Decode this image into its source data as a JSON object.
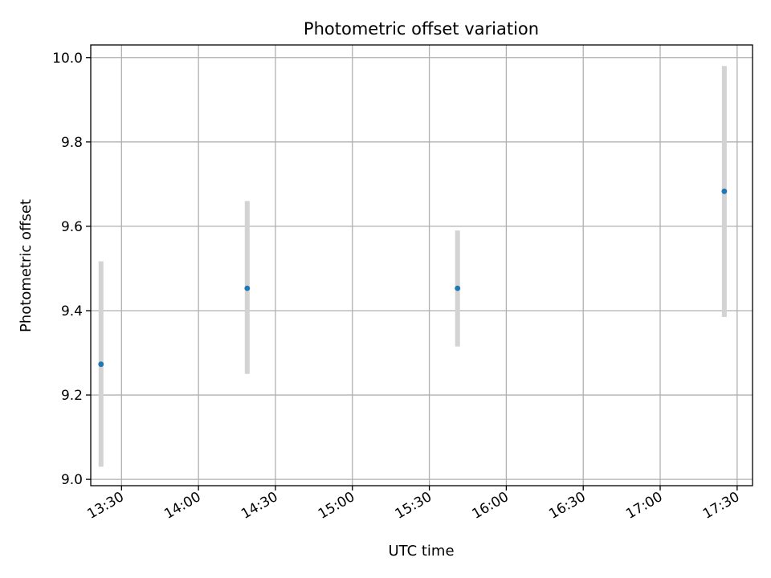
{
  "chart_data": {
    "type": "scatter",
    "title": "Photometric offset variation",
    "xlabel": "UTC time",
    "ylabel": "Photometric offset",
    "xlim": [
      "13:18",
      "17:36"
    ],
    "ylim": [
      8.985,
      10.03
    ],
    "grid": true,
    "x_ticks": [
      "13:30",
      "14:00",
      "14:30",
      "15:00",
      "15:30",
      "16:00",
      "16:30",
      "17:00",
      "17:30"
    ],
    "y_ticks": [
      "9.0",
      "9.2",
      "9.4",
      "9.6",
      "9.8",
      "10.0"
    ],
    "points": [
      {
        "x": "13:22",
        "y": 9.273,
        "err_low": 9.03,
        "err_high": 9.517
      },
      {
        "x": "14:19",
        "y": 9.453,
        "err_low": 9.25,
        "err_high": 9.66
      },
      {
        "x": "15:41",
        "y": 9.453,
        "err_low": 9.315,
        "err_high": 9.59
      },
      {
        "x": "17:25",
        "y": 9.683,
        "err_low": 9.385,
        "err_high": 9.98
      }
    ],
    "point_color": "#1f77b4",
    "errorbar_color": "#d3d3d3"
  }
}
